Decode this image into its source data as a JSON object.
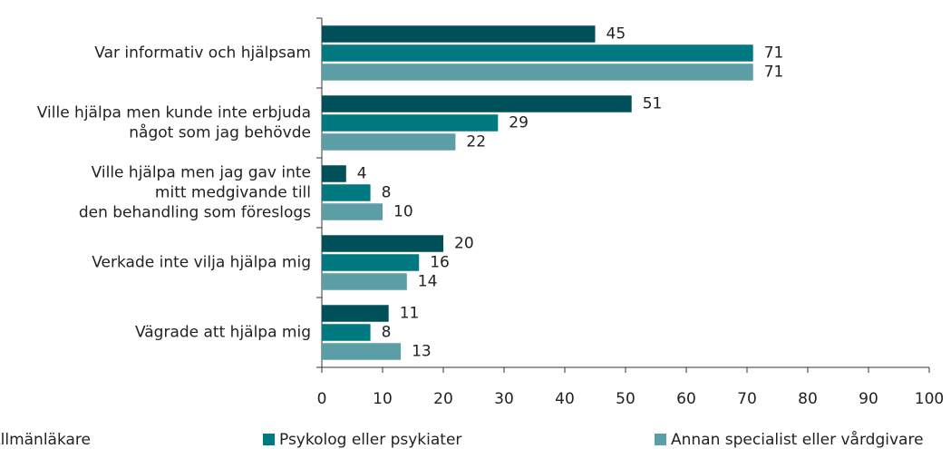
{
  "chart_data": {
    "type": "bar",
    "orientation": "horizontal",
    "categories": [
      [
        "Var informativ och hjälpsam"
      ],
      [
        "Ville hjälpa men kunde inte erbjuda",
        "något som jag behövde"
      ],
      [
        "Ville hjälpa men jag gav inte",
        "mitt medgivande till",
        "den behandling som föreslogs"
      ],
      [
        "Verkade inte vilja hjälpa mig"
      ],
      [
        "Vägrade att hjälpa mig"
      ]
    ],
    "series": [
      {
        "name": "Allmänläkare",
        "color": "#00505a",
        "values": [
          45,
          51,
          4,
          20,
          11
        ]
      },
      {
        "name": "Psykolog eller psykiater",
        "color": "#007a80",
        "values": [
          71,
          29,
          8,
          16,
          8
        ]
      },
      {
        "name": "Annan specialist eller vårdgivare",
        "color": "#5b9ea6",
        "values": [
          71,
          22,
          10,
          14,
          13
        ]
      }
    ],
    "xlim": [
      0,
      100
    ],
    "xticks": [
      0,
      10,
      20,
      30,
      40,
      50,
      60,
      70,
      80,
      90,
      100
    ],
    "legend": "bottom"
  }
}
